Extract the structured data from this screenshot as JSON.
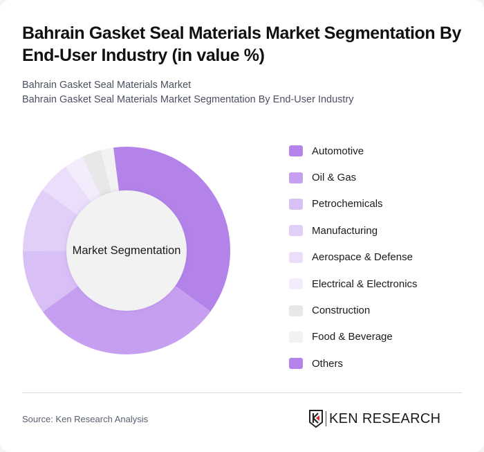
{
  "header": {
    "title": "Bahrain Gasket Seal Materials Market Segmentation By End-User Industry (in value %)",
    "subtitle_line1": "Bahrain Gasket Seal Materials Market",
    "subtitle_line2": "Bahrain Gasket Seal Materials Market Segmentation By End-User Industry"
  },
  "chart_data": {
    "type": "pie",
    "subtype": "donut",
    "title": "Bahrain Gasket Seal Materials Market Segmentation By End-User Industry (in value %)",
    "center_label": "Market Segmentation",
    "categories": [
      "Automotive",
      "Oil & Gas",
      "Petrochemicals",
      "Manufacturing",
      "Aerospace & Defense",
      "Electrical & Electronics",
      "Construction",
      "Food & Beverage",
      "Others"
    ],
    "values": [
      37,
      30,
      10,
      10,
      5,
      3,
      3,
      2,
      0
    ],
    "colors": [
      "#b383ea",
      "#c69ff0",
      "#d8c0f6",
      "#e2cff8",
      "#ebdefa",
      "#f3ecfc",
      "#e8e8e8",
      "#f2f2f2",
      "#b383ea"
    ],
    "start_angle_deg": -7.3,
    "legend_position": "right",
    "unit": "%"
  },
  "footer": {
    "source": "Source: Ken Research Analysis",
    "logo_text": "KEN RESEARCH"
  }
}
